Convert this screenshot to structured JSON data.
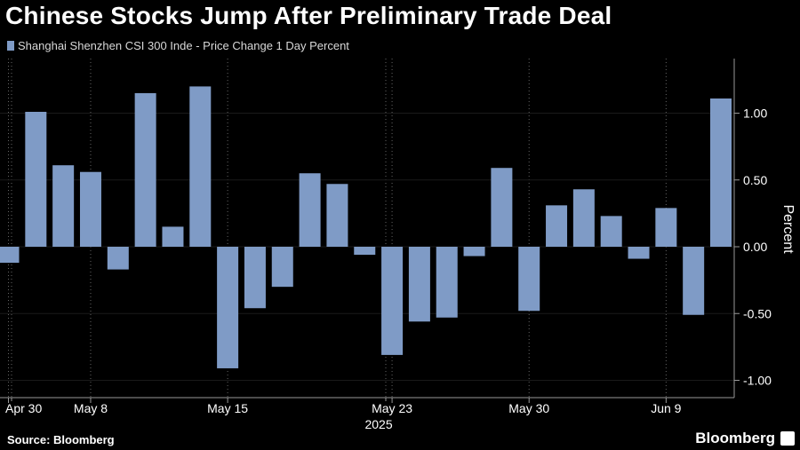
{
  "title": "Chinese Stocks Jump After Preliminary Trade Deal",
  "legend": {
    "label": "Shanghai Shenzhen CSI 300 Inde - Price Change 1 Day Percent"
  },
  "footer": {
    "source": "Source: Bloomberg",
    "brand": "Bloomberg"
  },
  "colors": {
    "bar": "#7f9bc6",
    "background": "#000000",
    "grid": "#666666",
    "text": "#ffffff"
  },
  "chart_data": {
    "type": "bar",
    "series": [
      {
        "name": "Shanghai Shenzhen CSI 300 Inde - Price Change 1 Day Percent",
        "values": [
          -0.12,
          1.01,
          0.61,
          0.56,
          -0.17,
          1.15,
          0.15,
          1.2,
          -0.91,
          -0.46,
          -0.3,
          0.55,
          0.47,
          -0.06,
          -0.81,
          -0.56,
          -0.53,
          -0.07,
          0.59,
          -0.48,
          0.31,
          0.43,
          0.23,
          -0.09,
          0.29,
          -0.51,
          1.11
        ]
      }
    ],
    "x_tick_labels": [
      "Apr 30",
      "May 8",
      "May 15",
      "May 23",
      "May 30",
      "Jun 9"
    ],
    "x_tick_bar_index": [
      0,
      3,
      8,
      14,
      19,
      24
    ],
    "x_sublabel": "2025",
    "ylabel": "Percent",
    "y_ticks": [
      -1.0,
      -0.5,
      0.0,
      0.5,
      1.0
    ],
    "y_tick_labels": [
      "-1.00",
      "-0.50",
      "0.00",
      "0.50",
      "1.00"
    ],
    "ylim": [
      -1.1,
      1.4
    ],
    "grid": "vertical dotted gridlines",
    "y_axis_position": "right",
    "legend_position": "top-left"
  }
}
